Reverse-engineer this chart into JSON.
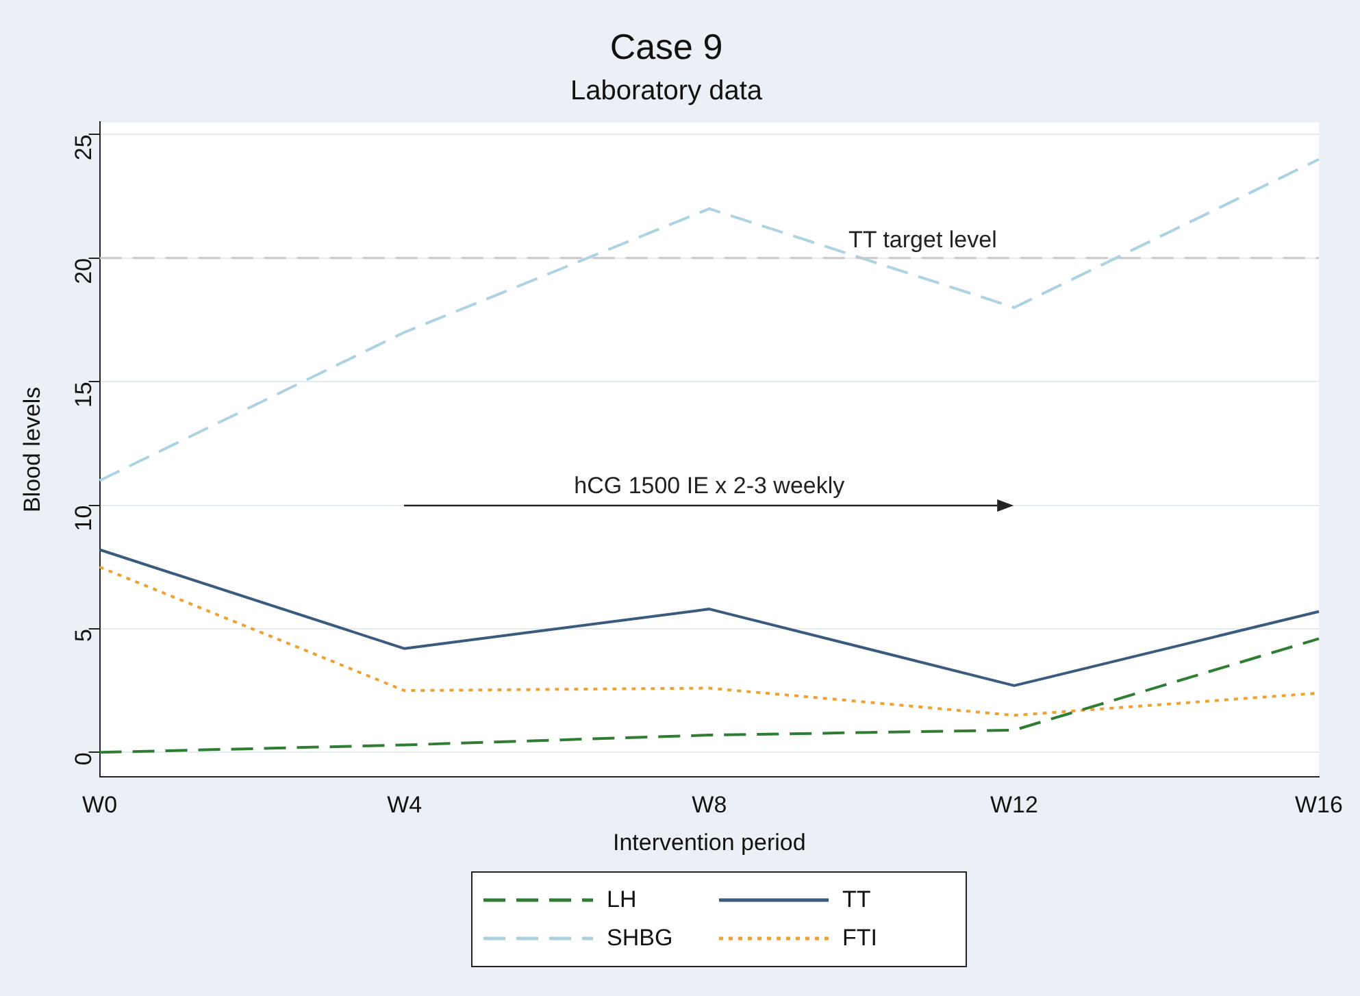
{
  "chart_data": {
    "type": "line",
    "title": "Case 9",
    "subtitle": "Laboratory data",
    "xlabel": "Intervention period",
    "ylabel": "Blood levels",
    "categories": [
      "W0",
      "W4",
      "W8",
      "W12",
      "W16"
    ],
    "series": [
      {
        "name": "LH",
        "color": "#2e7d32",
        "line_style": "dashed",
        "values": [
          0,
          0.3,
          0.7,
          0.9,
          4.6
        ]
      },
      {
        "name": "TT",
        "color": "#3b5b7e",
        "line_style": "solid",
        "values": [
          8.2,
          4.2,
          5.8,
          2.7,
          5.7
        ]
      },
      {
        "name": "SHBG",
        "color": "#add3e3",
        "line_style": "dashed",
        "values": [
          11,
          17,
          22,
          18,
          24
        ]
      },
      {
        "name": "FTI",
        "color": "#f0a030",
        "line_style": "dotted",
        "values": [
          7.5,
          2.5,
          2.6,
          1.5,
          2.4
        ]
      }
    ],
    "ylim": [
      -1,
      25.5
    ],
    "yticks": [
      0,
      5,
      10,
      15,
      20,
      25
    ],
    "grid": "y",
    "legend": "bottom",
    "marker": "none",
    "ref_lines": [
      {
        "axis": "y",
        "value": 20,
        "label": "TT target level",
        "color": "#c8c8c8",
        "line_style": "dashed"
      }
    ],
    "annotations": [
      "hCG 1500 IE x 2-3 weekly"
    ]
  }
}
